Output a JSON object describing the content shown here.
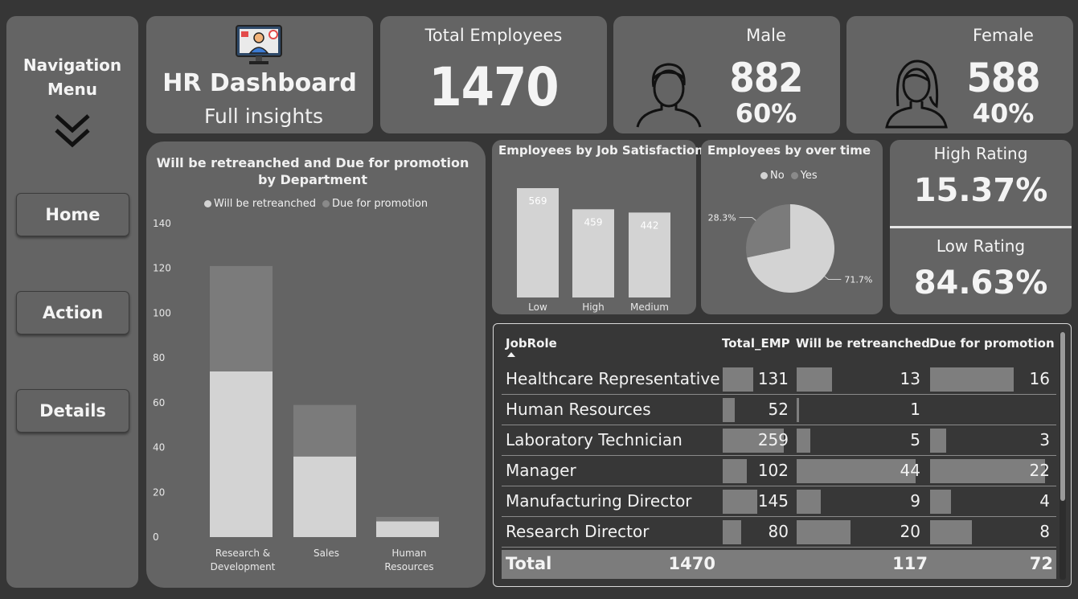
{
  "nav": {
    "title_line1": "Navigation",
    "title_line2": "Menu",
    "buttons": [
      "Home",
      "Action",
      "Details"
    ]
  },
  "header": {
    "title": "HR Dashboard",
    "subtitle": "Full insights"
  },
  "kpis": {
    "total_label": "Total Employees",
    "total_value": "1470",
    "male_label": "Male",
    "male_value": "882",
    "male_pct": "60%",
    "female_label": "Female",
    "female_value": "588",
    "female_pct": "40%"
  },
  "rating": {
    "high_label": "High Rating",
    "high_value": "15.37%",
    "low_label": "Low Rating",
    "low_value": "84.63%"
  },
  "colors": {
    "background": "#363636",
    "panel": "#646464",
    "bar_light": "#d3d3d3",
    "bar_dark": "#7b7b7b",
    "table_bg": "#373737"
  },
  "chart_data": [
    {
      "type": "bar",
      "title": "Will be retreanched and Due for promotion by Department",
      "categories": [
        "Research & Development",
        "Sales",
        "Human Resources"
      ],
      "category_lines": [
        [
          "Research &",
          "Development"
        ],
        [
          "Sales"
        ],
        [
          "Human",
          "Resources"
        ]
      ],
      "stacked": true,
      "series": [
        {
          "name": "Will be retreanched",
          "values": [
            74,
            36,
            7
          ],
          "color": "#d3d3d3"
        },
        {
          "name": "Due for promotion",
          "values": [
            47,
            23,
            2
          ],
          "color": "#7b7b7b"
        }
      ],
      "ylim": [
        0,
        140
      ],
      "yticks": [
        "0",
        "20",
        "40",
        "60",
        "80",
        "100",
        "120",
        "140"
      ],
      "legend": "top"
    },
    {
      "type": "bar",
      "title": "Employees by Job Satisfaction",
      "categories": [
        "Low",
        "High",
        "Medium"
      ],
      "values": [
        569,
        459,
        442
      ],
      "labels": [
        "569",
        "459",
        "442"
      ],
      "color": "#d3d3d3"
    },
    {
      "type": "pie",
      "title": "Employees by over time",
      "legend": "top",
      "slices": [
        {
          "name": "No",
          "value": 71.7,
          "label": "71.7%",
          "color": "#d3d3d3"
        },
        {
          "name": "Yes",
          "value": 28.3,
          "label": "28.3%",
          "color": "#7b7b7b"
        }
      ]
    }
  ],
  "table": {
    "headers": [
      "JobRole",
      "Total_EMP",
      "Will be retreanched",
      "Due for promotion"
    ],
    "rows": [
      {
        "role": "Healthcare Representative",
        "total": "131",
        "retreanched": "13",
        "promotion": "16",
        "t": 131,
        "r": 13,
        "p": 16
      },
      {
        "role": "Human Resources",
        "total": "52",
        "retreanched": "1",
        "promotion": "",
        "t": 52,
        "r": 1,
        "p": 0
      },
      {
        "role": "Laboratory Technician",
        "total": "259",
        "retreanched": "5",
        "promotion": "3",
        "t": 259,
        "r": 5,
        "p": 3
      },
      {
        "role": "Manager",
        "total": "102",
        "retreanched": "44",
        "promotion": "22",
        "t": 102,
        "r": 44,
        "p": 22
      },
      {
        "role": "Manufacturing Director",
        "total": "145",
        "retreanched": "9",
        "promotion": "4",
        "t": 145,
        "r": 9,
        "p": 4
      },
      {
        "role": "Research Director",
        "total": "80",
        "retreanched": "20",
        "promotion": "8",
        "t": 80,
        "r": 20,
        "p": 8
      }
    ],
    "total_label": "Total",
    "total_emp": "1470",
    "total_retreanched": "117",
    "total_promotion": "72"
  }
}
